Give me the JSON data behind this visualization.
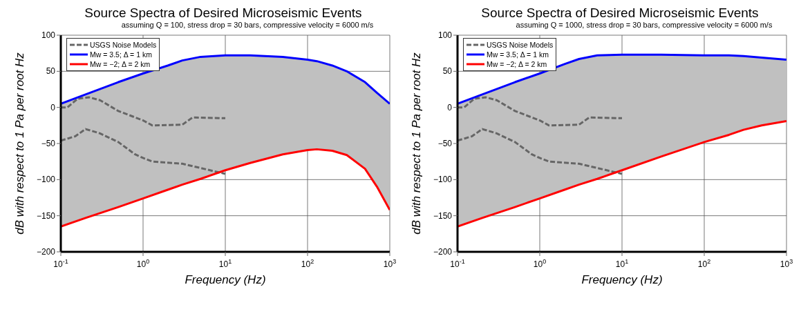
{
  "chart_data": [
    {
      "type": "line",
      "title": "Source Spectra of Desired Microseismic Events",
      "subtitle": "assuming Q = 100, stress drop = 30 bars, compressive velocity = 6000 m/s",
      "xlabel": "Frequency (Hz)",
      "ylabel": "dB with respect to 1 Pa per root Hz",
      "log": "x",
      "grid": true,
      "legend": "top left",
      "xlim": [
        0.1,
        1000
      ],
      "ylim": [
        -200,
        100
      ],
      "xticks": [
        {
          "value": 0.1,
          "label": "10$^{-1}$"
        },
        {
          "value": 1,
          "label": "10$^{0}$"
        },
        {
          "value": 10,
          "label": "10$^{1}$"
        },
        {
          "value": 100,
          "label": "10$^{2}$"
        },
        {
          "value": 1000,
          "label": "10$^{3}$"
        }
      ],
      "yticks": [
        {
          "value": -200,
          "label": "−200"
        },
        {
          "value": -150,
          "label": "−150"
        },
        {
          "value": -100,
          "label": "−100"
        },
        {
          "value": -50,
          "label": "−50"
        },
        0,
        50,
        100
      ],
      "series": [
        {
          "name": "USGS Noise Models",
          "line_style": "dashed",
          "color": "#666666",
          "x": [
            0.1,
            0.12,
            0.16,
            0.22,
            0.3,
            0.5,
            1,
            1.3,
            3,
            4,
            10
          ],
          "values": [
            0,
            0,
            12,
            14,
            10,
            -5,
            -18,
            -25,
            -24,
            -14,
            -15
          ]
        },
        {
          "line_style": "dashed",
          "color": "#666666",
          "x": [
            0.1,
            0.15,
            0.2,
            0.3,
            0.5,
            0.8,
            1,
            1.3,
            3,
            10
          ],
          "values": [
            -46,
            -40,
            -30,
            -36,
            -48,
            -65,
            -70,
            -75,
            -78,
            -92
          ]
        },
        {
          "name": "Mw = 3.5; Δ = 1 km",
          "color": "#0000ff",
          "x": [
            0.1,
            0.2,
            0.5,
            1,
            2,
            3,
            5,
            10,
            20,
            50,
            100,
            130,
            200,
            300,
            500,
            700,
            1000
          ],
          "values": [
            5,
            18,
            35,
            47,
            58,
            65,
            70,
            72,
            72,
            70,
            66,
            64,
            58,
            50,
            35,
            20,
            5
          ],
          "lower": [
            -165,
            -153,
            -138,
            -126,
            -114,
            -107,
            -99,
            -87,
            -77,
            -65,
            -59,
            -58,
            -60,
            -66,
            -85,
            -110,
            -142
          ],
          "upper": [
            5,
            18,
            35,
            47,
            58,
            65,
            70,
            72,
            72,
            70,
            66,
            64,
            58,
            50,
            35,
            20,
            5
          ]
        },
        {
          "name": "Mw = −2; Δ = 2 km",
          "color": "#ff0000",
          "x": [
            0.1,
            0.2,
            0.5,
            1,
            2,
            3,
            5,
            10,
            20,
            50,
            100,
            130,
            200,
            300,
            500,
            700,
            1000
          ],
          "values": [
            -165,
            -153,
            -138,
            -126,
            -114,
            -107,
            -99,
            -87,
            -77,
            -65,
            -59,
            -58,
            -60,
            -66,
            -85,
            -110,
            -142
          ]
        }
      ]
    },
    {
      "type": "line",
      "title": "Source Spectra of Desired Microseismic Events",
      "subtitle": "assuming Q = 1000, stress drop = 30 bars, compressive velocity = 6000 m/s",
      "xlabel": "Frequency (Hz)",
      "ylabel": "dB with respect to 1 Pa per root Hz",
      "log": "x",
      "grid": true,
      "legend": "top left",
      "xlim": [
        0.1,
        1000
      ],
      "ylim": [
        -200,
        100
      ],
      "xticks": [
        {
          "value": 0.1,
          "label": "10$^{-1}$"
        },
        {
          "value": 1,
          "label": "10$^{0}$"
        },
        {
          "value": 10,
          "label": "10$^{1}$"
        },
        {
          "value": 100,
          "label": "10$^{2}$"
        },
        {
          "value": 1000,
          "label": "10$^{3}$"
        }
      ],
      "yticks": [
        {
          "value": -200,
          "label": "−200"
        },
        {
          "value": -150,
          "label": "−150"
        },
        {
          "value": -100,
          "label": "−100"
        },
        {
          "value": -50,
          "label": "−50"
        },
        0,
        50,
        100
      ],
      "series": [
        {
          "name": "USGS Noise Models",
          "line_style": "dashed",
          "color": "#666666",
          "x": [
            0.1,
            0.12,
            0.16,
            0.22,
            0.3,
            0.5,
            1,
            1.3,
            3,
            4,
            10
          ],
          "values": [
            0,
            0,
            12,
            14,
            10,
            -5,
            -18,
            -25,
            -24,
            -14,
            -15
          ]
        },
        {
          "line_style": "dashed",
          "color": "#666666",
          "x": [
            0.1,
            0.15,
            0.2,
            0.3,
            0.5,
            0.8,
            1,
            1.3,
            3,
            10
          ],
          "values": [
            -46,
            -40,
            -30,
            -36,
            -48,
            -65,
            -70,
            -75,
            -78,
            -92
          ]
        },
        {
          "name": "Mw = 3.5; Δ = 1 km",
          "color": "#0000ff",
          "x": [
            0.1,
            0.2,
            0.5,
            1,
            2,
            3,
            5,
            10,
            30,
            100,
            200,
            300,
            500,
            1000
          ],
          "values": [
            5,
            18,
            35,
            47,
            60,
            67,
            72,
            73,
            73,
            72,
            72,
            71,
            69,
            66
          ],
          "lower": [
            -165,
            -153,
            -138,
            -126,
            -114,
            -107,
            -99,
            -87,
            -68,
            -48,
            -38,
            -31,
            -25,
            -19
          ],
          "upper": [
            5,
            18,
            35,
            47,
            60,
            67,
            72,
            73,
            73,
            72,
            72,
            71,
            69,
            66
          ]
        },
        {
          "name": "Mw = −2; Δ = 2 km",
          "color": "#ff0000",
          "x": [
            0.1,
            0.2,
            0.5,
            1,
            2,
            3,
            5,
            10,
            30,
            100,
            200,
            300,
            500,
            1000
          ],
          "values": [
            -165,
            -153,
            -138,
            -126,
            -114,
            -107,
            -99,
            -87,
            -68,
            -48,
            -38,
            -31,
            -25,
            -19
          ]
        }
      ]
    }
  ]
}
